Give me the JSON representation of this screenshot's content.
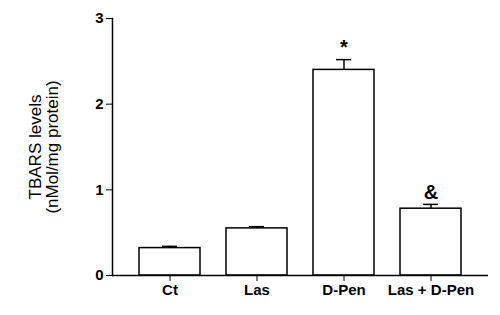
{
  "chart_data": {
    "type": "bar",
    "y_label": "TBARS levels\n(nMol/mg protein)",
    "categories": [
      "Ct",
      "Las",
      "D-Pen",
      "Las + D-Pen"
    ],
    "values": [
      0.32,
      0.55,
      2.4,
      0.78
    ],
    "errors": [
      0.02,
      0.02,
      0.12,
      0.05
    ],
    "annotations": [
      {
        "category": "D-Pen",
        "text": "*"
      },
      {
        "category": "Las + D-Pen",
        "text": "&"
      }
    ],
    "color": "#ffffff",
    "ylim": [
      0,
      3
    ],
    "yticks": [
      0,
      1,
      2,
      3
    ],
    "grid": false
  }
}
